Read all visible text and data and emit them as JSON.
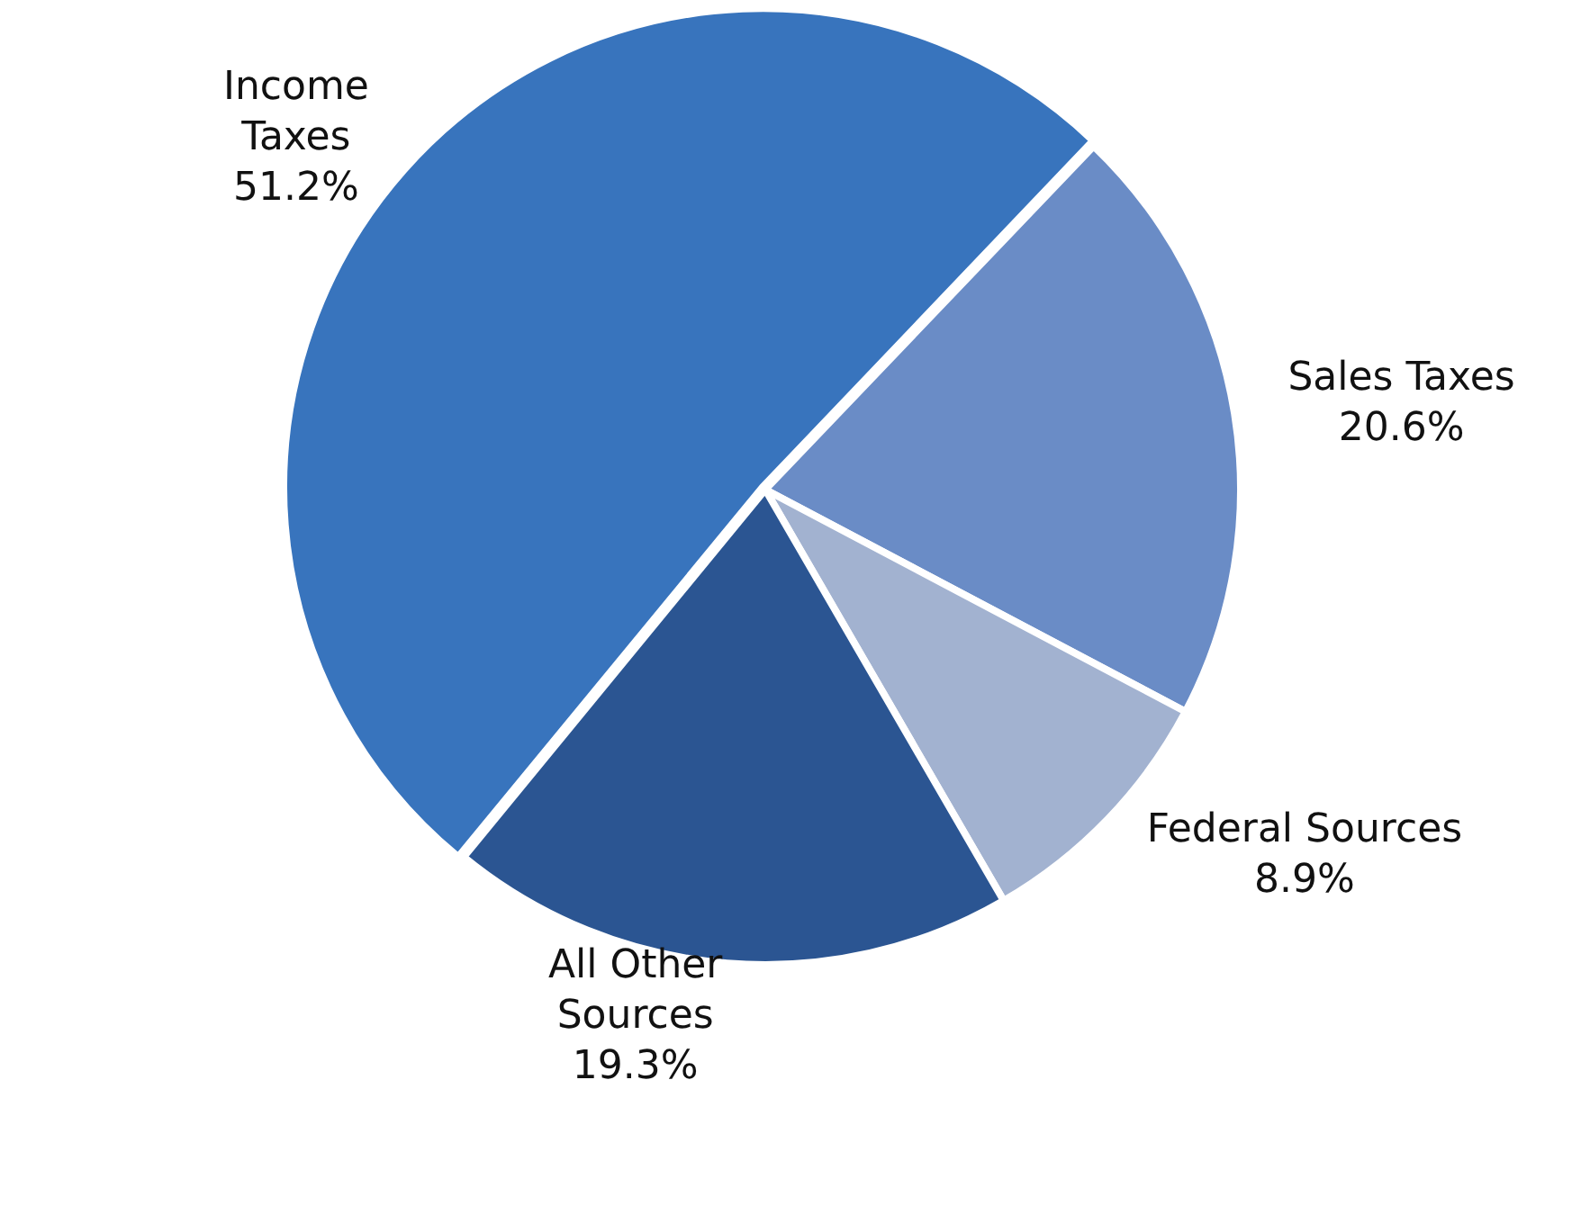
{
  "chart_data": {
    "type": "pie",
    "categories": [
      "Income Taxes",
      "Sales Taxes",
      "Federal Sources",
      "All Other Sources"
    ],
    "values": [
      51.2,
      20.6,
      8.9,
      19.3
    ],
    "colors": [
      "#3874bd",
      "#6a8cc6",
      "#a2b2d0",
      "#2b5592"
    ],
    "value_labels": [
      "51.2%",
      "20.6%",
      "8.9%",
      "19.3%"
    ],
    "legend": false
  }
}
